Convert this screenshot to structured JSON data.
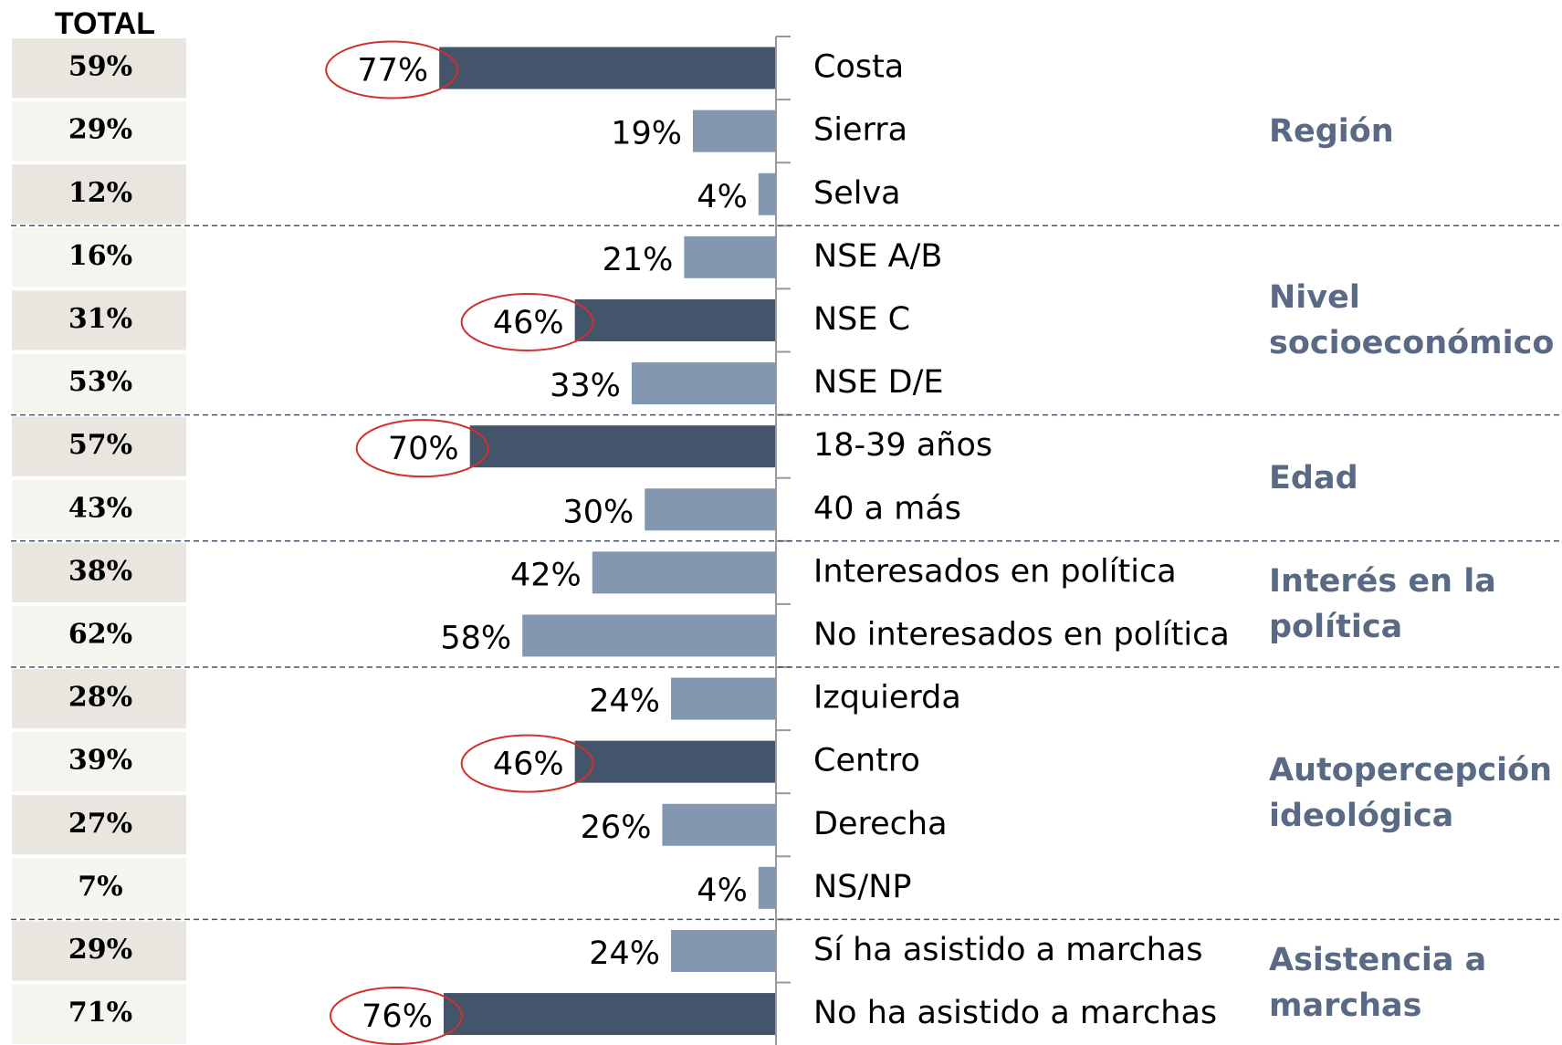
{
  "chart_data": {
    "type": "bar",
    "orientation": "horizontal",
    "total_title": "TOTAL",
    "color": "#8497b0",
    "highlight_color": "#44546a",
    "circle_color": "#d0312d",
    "groups": [
      {
        "name": "Región",
        "categories": [
          "Costa",
          "Sierra",
          "Selva"
        ],
        "values": [
          77,
          19,
          4
        ],
        "value_labels": [
          "77%",
          "19%",
          "4%"
        ],
        "totals": [
          59,
          29,
          12
        ],
        "total_labels": [
          "59%",
          "29%",
          "12%"
        ],
        "highlight": [
          true,
          false,
          false
        ]
      },
      {
        "name": "Nivel socioeconómico",
        "categories": [
          "NSE A/B",
          "NSE C",
          "NSE D/E"
        ],
        "values": [
          21,
          46,
          33
        ],
        "value_labels": [
          "21%",
          "46%",
          "33%"
        ],
        "totals": [
          16,
          31,
          53
        ],
        "total_labels": [
          "16%",
          "31%",
          "53%"
        ],
        "highlight": [
          false,
          true,
          false
        ]
      },
      {
        "name": "Edad",
        "categories": [
          "18-39 años",
          "40 a más"
        ],
        "values": [
          70,
          30
        ],
        "value_labels": [
          "70%",
          "30%"
        ],
        "totals": [
          57,
          43
        ],
        "total_labels": [
          "57%",
          "43%"
        ],
        "highlight": [
          true,
          false
        ]
      },
      {
        "name": "Interés en la política",
        "categories": [
          "Interesados en política",
          "No interesados en política"
        ],
        "values": [
          42,
          58
        ],
        "value_labels": [
          "42%",
          "58%"
        ],
        "totals": [
          38,
          62
        ],
        "total_labels": [
          "38%",
          "62%"
        ],
        "highlight": [
          false,
          false
        ]
      },
      {
        "name": "Autopercepción ideológica",
        "categories": [
          "Izquierda",
          "Centro",
          "Derecha",
          "NS/NP"
        ],
        "values": [
          24,
          46,
          26,
          4
        ],
        "value_labels": [
          "24%",
          "46%",
          "26%",
          "4%"
        ],
        "totals": [
          28,
          39,
          27,
          7
        ],
        "total_labels": [
          "28%",
          "39%",
          "27%",
          "7%"
        ],
        "highlight": [
          false,
          true,
          false,
          false
        ]
      },
      {
        "name": "Asistencia a marchas",
        "categories": [
          "Sí ha asistido a marchas",
          "No ha asistido a marchas"
        ],
        "values": [
          24,
          76
        ],
        "value_labels": [
          "24%",
          "76%"
        ],
        "totals": [
          29,
          71
        ],
        "total_labels": [
          "29%",
          "71%"
        ],
        "highlight": [
          false,
          true
        ]
      }
    ]
  }
}
